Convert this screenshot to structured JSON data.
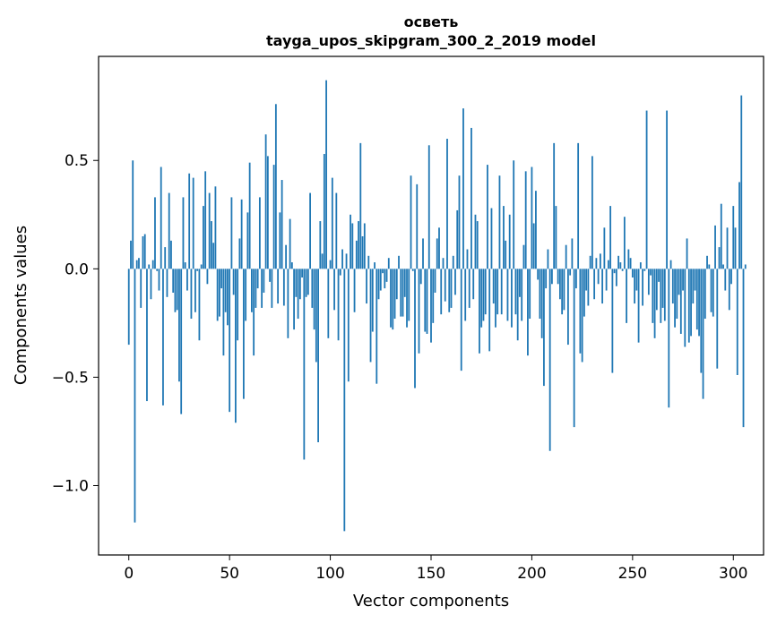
{
  "chart_data": {
    "type": "bar",
    "title": "осветь",
    "subtitle": "tayga_upos_skipgram_300_2_2019 model",
    "xlabel": "Vector components",
    "ylabel": "Components values",
    "xlim": [
      -15,
      315
    ],
    "ylim": [
      -1.32,
      0.98
    ],
    "xticks": [
      0,
      50,
      100,
      150,
      200,
      250,
      300
    ],
    "yticks": [
      0.5,
      0.0,
      -0.5,
      -1.0
    ],
    "ytick_labels": [
      "0.5",
      "0.0",
      "−0.5",
      "−1.0"
    ],
    "bar_color": "#1f77b4",
    "values": [
      -0.35,
      0.13,
      0.5,
      -1.17,
      0.04,
      0.05,
      -0.18,
      0.15,
      0.16,
      -0.61,
      0.02,
      -0.14,
      0.04,
      0.33,
      -0.01,
      -0.1,
      0.47,
      -0.63,
      0.1,
      -0.13,
      0.35,
      0.13,
      -0.11,
      -0.2,
      -0.19,
      -0.52,
      -0.67,
      0.33,
      0.03,
      -0.1,
      0.44,
      -0.23,
      0.42,
      -0.2,
      -0.01,
      -0.33,
      0.02,
      0.29,
      0.45,
      -0.07,
      0.35,
      0.22,
      0.12,
      0.38,
      -0.24,
      -0.22,
      -0.09,
      -0.4,
      -0.2,
      -0.26,
      -0.66,
      0.33,
      -0.12,
      -0.71,
      -0.33,
      0.14,
      0.32,
      -0.6,
      -0.24,
      0.26,
      0.49,
      -0.2,
      -0.4,
      -0.18,
      -0.09,
      0.33,
      -0.18,
      -0.11,
      0.62,
      0.52,
      -0.06,
      -0.18,
      0.48,
      0.76,
      -0.16,
      0.26,
      0.41,
      -0.17,
      0.11,
      -0.32,
      0.23,
      0.03,
      -0.28,
      -0.13,
      -0.23,
      -0.14,
      -0.04,
      -0.88,
      -0.13,
      -0.12,
      0.35,
      -0.18,
      -0.28,
      -0.43,
      -0.8,
      0.22,
      0.07,
      0.53,
      0.87,
      -0.32,
      0.04,
      0.42,
      -0.19,
      0.35,
      -0.33,
      -0.03,
      0.09,
      -1.21,
      0.07,
      -0.52,
      0.25,
      0.21,
      -0.2,
      0.13,
      0.22,
      0.58,
      0.15,
      0.21,
      -0.16,
      0.06,
      -0.43,
      -0.29,
      0.03,
      -0.53,
      -0.14,
      -0.1,
      -0.02,
      -0.09,
      -0.06,
      0.05,
      -0.27,
      -0.28,
      -0.23,
      -0.14,
      0.06,
      -0.22,
      -0.22,
      -0.13,
      -0.27,
      -0.24,
      0.43,
      -0.01,
      -0.55,
      0.39,
      -0.39,
      -0.07,
      0.14,
      -0.29,
      -0.3,
      0.57,
      -0.34,
      -0.25,
      -0.11,
      0.14,
      0.19,
      -0.21,
      0.05,
      -0.15,
      0.6,
      -0.2,
      -0.18,
      0.06,
      -0.12,
      0.27,
      0.43,
      -0.47,
      0.74,
      -0.24,
      0.09,
      -0.18,
      0.65,
      -0.14,
      0.25,
      0.22,
      -0.39,
      -0.27,
      -0.24,
      -0.21,
      0.48,
      -0.38,
      0.28,
      -0.16,
      -0.27,
      -0.21,
      0.43,
      -0.21,
      0.29,
      0.13,
      -0.24,
      0.25,
      -0.27,
      0.5,
      -0.21,
      -0.33,
      -0.13,
      -0.24,
      0.11,
      0.45,
      -0.4,
      -0.23,
      0.47,
      0.21,
      0.36,
      -0.05,
      -0.23,
      -0.32,
      -0.54,
      -0.09,
      0.09,
      -0.84,
      -0.07,
      0.58,
      0.29,
      -0.07,
      -0.14,
      -0.21,
      -0.19,
      0.11,
      -0.35,
      -0.03,
      0.14,
      -0.73,
      -0.09,
      0.58,
      -0.39,
      -0.43,
      -0.22,
      -0.1,
      -0.17,
      0.06,
      0.52,
      -0.14,
      0.05,
      -0.07,
      0.07,
      -0.16,
      0.19,
      -0.1,
      0.04,
      0.29,
      -0.48,
      -0.02,
      -0.08,
      0.06,
      0.03,
      -0.01,
      0.24,
      -0.25,
      0.09,
      0.05,
      -0.04,
      -0.16,
      -0.1,
      -0.34,
      0.03,
      -0.17,
      -0.01,
      0.73,
      -0.12,
      -0.03,
      -0.25,
      -0.32,
      -0.19,
      -0.06,
      -0.25,
      -0.18,
      -0.24,
      0.73,
      -0.64,
      0.04,
      -0.16,
      -0.27,
      -0.23,
      -0.12,
      -0.3,
      -0.1,
      -0.36,
      0.14,
      -0.34,
      -0.31,
      -0.16,
      -0.1,
      -0.28,
      -0.31,
      -0.48,
      -0.6,
      -0.23,
      0.06,
      0.02,
      -0.2,
      -0.22,
      0.2,
      -0.46,
      0.1,
      0.3,
      0.02,
      -0.1,
      0.19,
      -0.19,
      -0.07,
      0.29,
      0.19,
      -0.49,
      0.4,
      0.8,
      -0.73,
      0.02
    ]
  }
}
